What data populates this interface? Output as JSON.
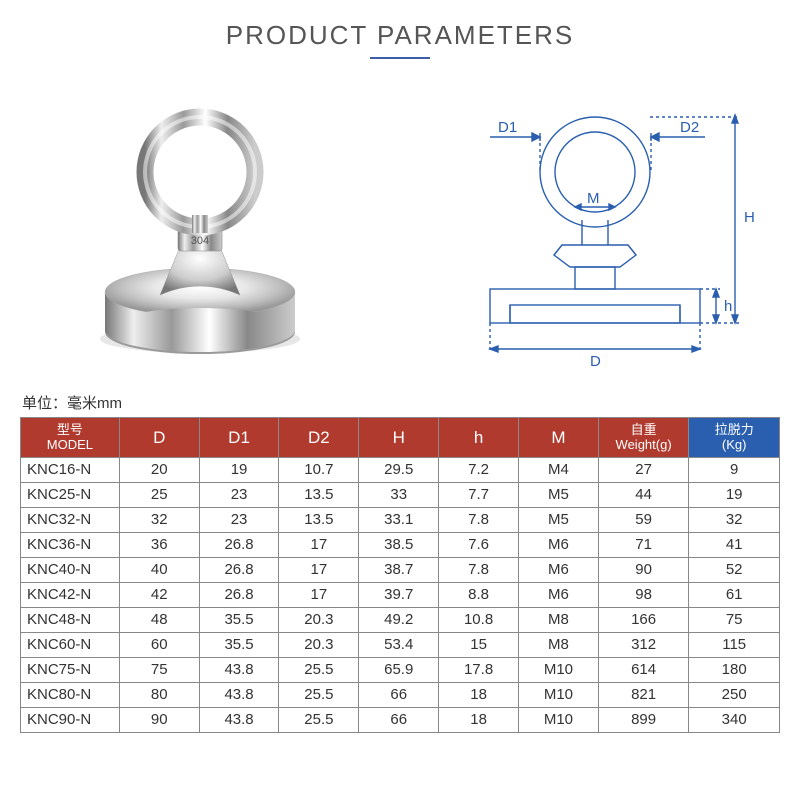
{
  "title": "PRODUCT PARAMETERS",
  "unit_label": "单位：毫米mm",
  "diagram_labels": {
    "D1": "D1",
    "D2": "D2",
    "M": "M",
    "H": "H",
    "h": "h",
    "D": "D"
  },
  "colors": {
    "header_red": "#b13a2e",
    "header_blue": "#2a5fb0",
    "title_underline": "#3a5fa6",
    "border": "#888888",
    "diagram_line": "#2a5fb0",
    "metal_light": "#f4f4f4",
    "metal_mid": "#cfcfcf",
    "metal_dark": "#8a8a8a"
  },
  "table": {
    "columns": [
      {
        "cn": "型号",
        "en": "MODEL",
        "color": "header_red"
      },
      {
        "cn": "",
        "en": "D",
        "color": "header_red"
      },
      {
        "cn": "",
        "en": "D1",
        "color": "header_red"
      },
      {
        "cn": "",
        "en": "D2",
        "color": "header_red"
      },
      {
        "cn": "",
        "en": "H",
        "color": "header_red"
      },
      {
        "cn": "",
        "en": "h",
        "color": "header_red"
      },
      {
        "cn": "",
        "en": "M",
        "color": "header_red"
      },
      {
        "cn": "自重",
        "en": "Weight(g)",
        "color": "header_red"
      },
      {
        "cn": "拉脱力",
        "en": "(Kg)",
        "color": "header_blue"
      }
    ],
    "rows": [
      [
        "KNC16-N",
        "20",
        "19",
        "10.7",
        "29.5",
        "7.2",
        "M4",
        "27",
        "9"
      ],
      [
        "KNC25-N",
        "25",
        "23",
        "13.5",
        "33",
        "7.7",
        "M5",
        "44",
        "19"
      ],
      [
        "KNC32-N",
        "32",
        "23",
        "13.5",
        "33.1",
        "7.8",
        "M5",
        "59",
        "32"
      ],
      [
        "KNC36-N",
        "36",
        "26.8",
        "17",
        "38.5",
        "7.6",
        "M6",
        "71",
        "41"
      ],
      [
        "KNC40-N",
        "40",
        "26.8",
        "17",
        "38.7",
        "7.8",
        "M6",
        "90",
        "52"
      ],
      [
        "KNC42-N",
        "42",
        "26.8",
        "17",
        "39.7",
        "8.8",
        "M6",
        "98",
        "61"
      ],
      [
        "KNC48-N",
        "48",
        "35.5",
        "20.3",
        "49.2",
        "10.8",
        "M8",
        "166",
        "75"
      ],
      [
        "KNC60-N",
        "60",
        "35.5",
        "20.3",
        "53.4",
        "15",
        "M8",
        "312",
        "115"
      ],
      [
        "KNC75-N",
        "75",
        "43.8",
        "25.5",
        "65.9",
        "17.8",
        "M10",
        "614",
        "180"
      ],
      [
        "KNC80-N",
        "80",
        "43.8",
        "25.5",
        "66",
        "18",
        "M10",
        "821",
        "250"
      ],
      [
        "KNC90-N",
        "90",
        "43.8",
        "25.5",
        "66",
        "18",
        "M10",
        "899",
        "340"
      ]
    ]
  }
}
